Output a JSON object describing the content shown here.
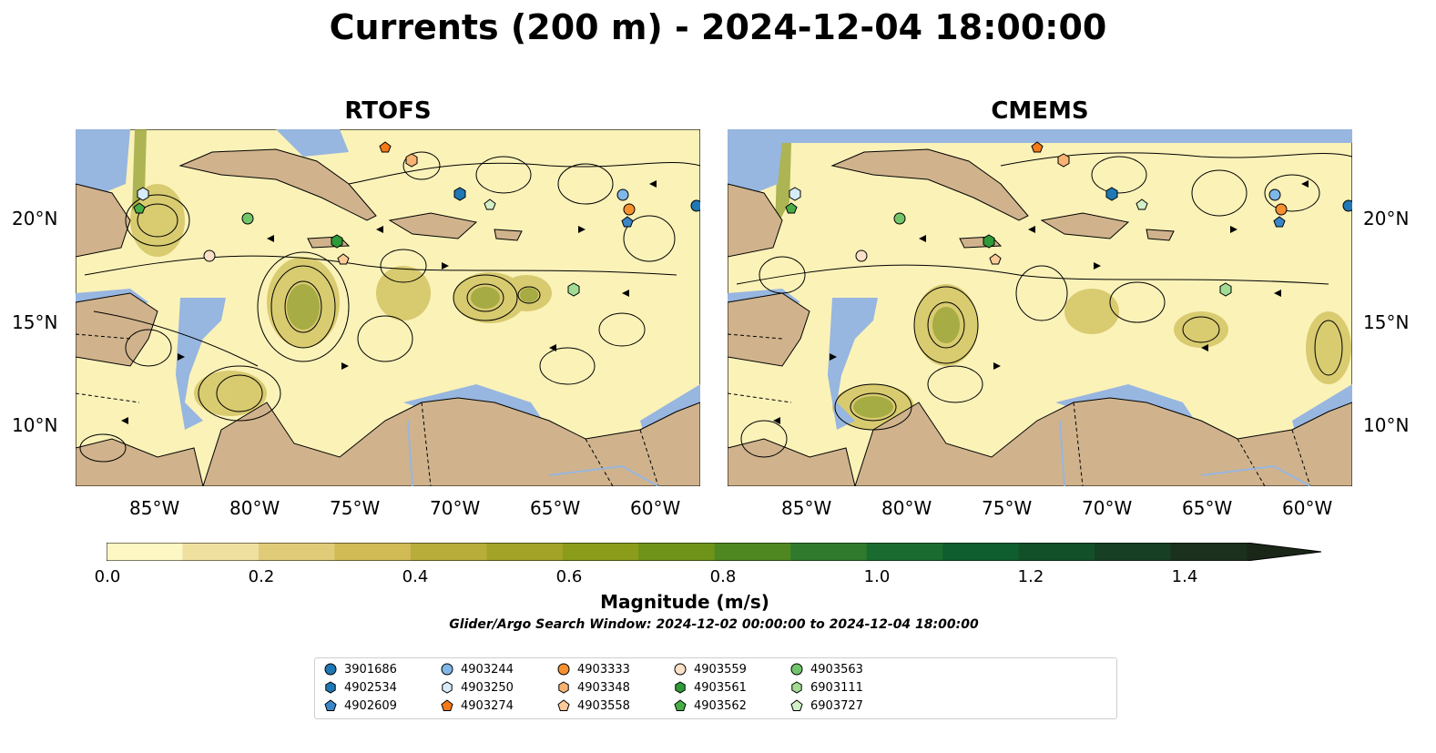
{
  "title": "Currents (200 m) - 2024-12-04 18:00:00",
  "panels": [
    {
      "title": "RTOFS"
    },
    {
      "title": "CMEMS"
    }
  ],
  "lon_ticks": [
    "85°W",
    "80°W",
    "75°W",
    "70°W",
    "65°W",
    "60°W"
  ],
  "lat_ticks": [
    "20°N",
    "15°N",
    "10°N"
  ],
  "colorbar": {
    "label": "Magnitude (m/s)",
    "ticks": [
      "0.0",
      "0.2",
      "0.4",
      "0.6",
      "0.8",
      "1.0",
      "1.2",
      "1.4"
    ],
    "colors": [
      "#fdf7c3",
      "#f0e0a0",
      "#e0cc78",
      "#d0bb55",
      "#b8ad3a",
      "#a3a427",
      "#8a9c1a",
      "#6f9218",
      "#4f8720",
      "#2f7a2c",
      "#1a6b30",
      "#0f5e2f",
      "#12502a",
      "#173f24",
      "#1b301d",
      "#1a2718"
    ]
  },
  "search_window": "Glider/Argo Search Window: 2024-12-02 00:00:00 to 2024-12-04 18:00:00",
  "colors": {
    "ocean": "#ffffff",
    "land": "#d0b38c",
    "water_mask": "#97b6e0",
    "current_low": "#fbf2b8"
  },
  "legend": [
    {
      "id": "3901686",
      "shape": "circle",
      "color": "#1f78b4"
    },
    {
      "id": "4902534",
      "shape": "hexagon",
      "color": "#1f78b4"
    },
    {
      "id": "4902609",
      "shape": "pentagon",
      "color": "#3a86c8"
    },
    {
      "id": "4903244",
      "shape": "circle",
      "color": "#7fb7e6"
    },
    {
      "id": "4903250",
      "shape": "hexagon",
      "color": "#d6ecfa"
    },
    {
      "id": "4903274",
      "shape": "pentagon",
      "color": "#f47a17"
    },
    {
      "id": "4903333",
      "shape": "circle",
      "color": "#f7902e"
    },
    {
      "id": "4903348",
      "shape": "hexagon",
      "color": "#f8b272"
    },
    {
      "id": "4903558",
      "shape": "pentagon",
      "color": "#fdcb97"
    },
    {
      "id": "4903559",
      "shape": "circle",
      "color": "#fde0c8"
    },
    {
      "id": "4903561",
      "shape": "hexagon",
      "color": "#2e9a38"
    },
    {
      "id": "4903562",
      "shape": "pentagon",
      "color": "#49ad46"
    },
    {
      "id": "4903563",
      "shape": "circle",
      "color": "#72c66a"
    },
    {
      "id": "6903111",
      "shape": "hexagon",
      "color": "#a2dc94"
    },
    {
      "id": "6903727",
      "shape": "pentagon",
      "color": "#d3f0c9"
    }
  ]
}
